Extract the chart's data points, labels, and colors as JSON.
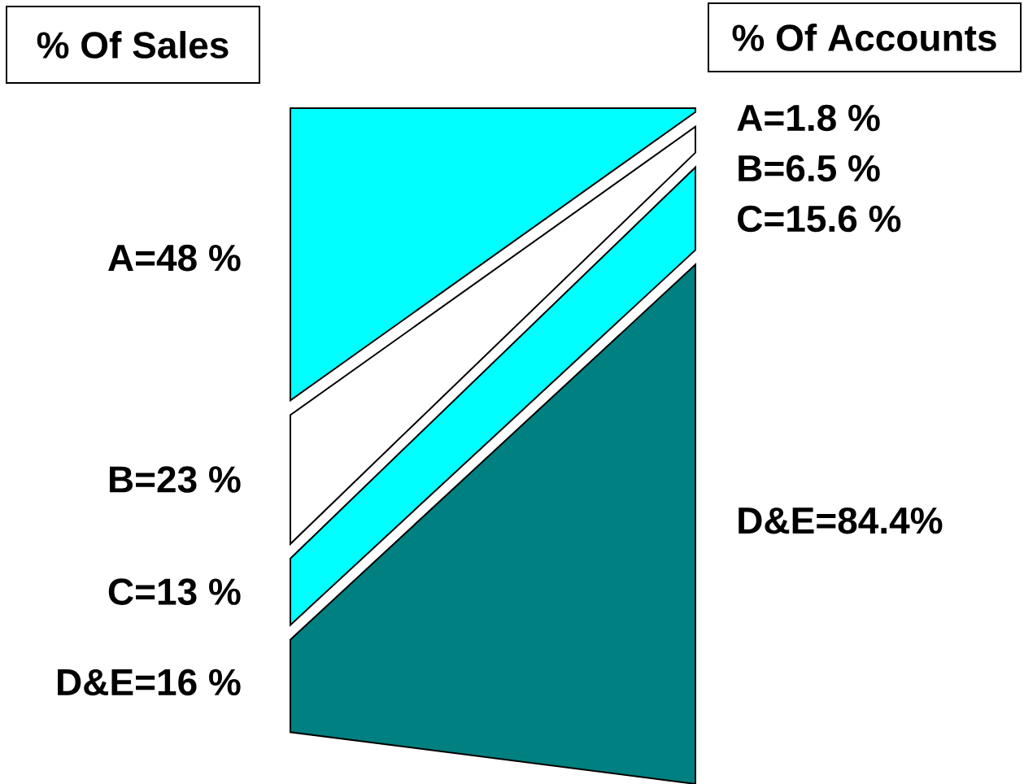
{
  "chart_data": {
    "type": "other",
    "categories": [
      "A",
      "B",
      "C",
      "D&E"
    ],
    "colors": [
      "#00ffff",
      "#ffffff",
      "#00ffff",
      "#008080"
    ],
    "series": [
      {
        "name": "% Of Sales",
        "values": [
          48,
          23,
          13,
          16
        ],
        "value_labels": [
          "=48 %",
          "=23 %",
          "=13 %",
          "=16 %"
        ]
      },
      {
        "name": "% Of Accounts",
        "values": [
          1.8,
          6.5,
          15.6,
          84.4
        ],
        "value_labels": [
          "=1.8 %",
          "=6.5 %",
          "=15.6 %",
          "=84.4%"
        ]
      }
    ]
  }
}
